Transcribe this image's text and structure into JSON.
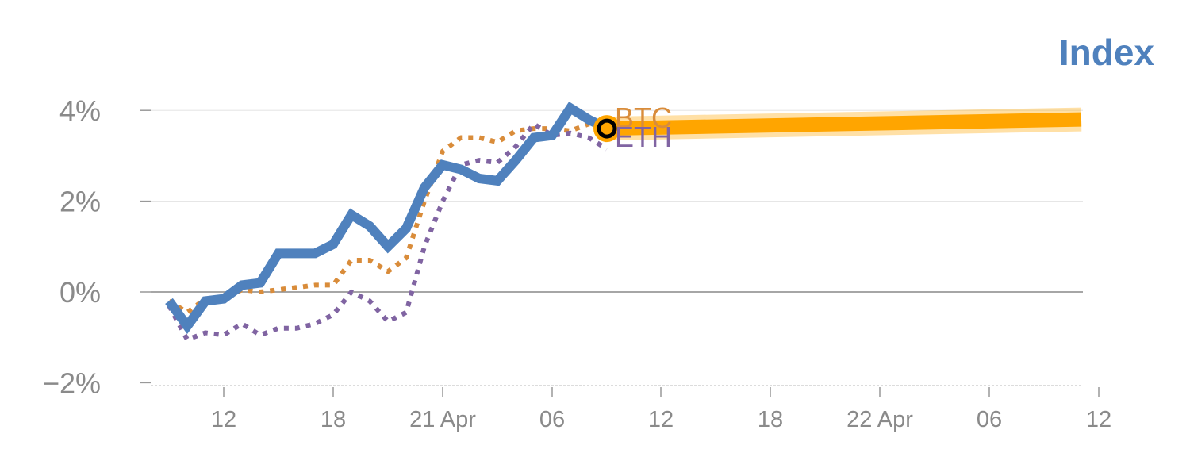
{
  "chart_data": {
    "type": "line",
    "title": "Index",
    "y_ticks": [
      "4%",
      "2%",
      "0%",
      "−2%"
    ],
    "y_tick_values": [
      4,
      2,
      0,
      -2
    ],
    "ylim": [
      -2.1,
      4.1
    ],
    "x_tick_labels": [
      "12",
      "18",
      "21 Apr",
      "06",
      "12",
      "18",
      "22 Apr",
      "06",
      "12"
    ],
    "x_tick_positions": [
      3,
      9,
      15,
      21,
      27,
      33,
      39,
      45,
      51
    ],
    "xlim": [
      -1,
      51
    ],
    "grid": true,
    "series": [
      {
        "name": "Index",
        "color": "#4f81bd",
        "style": "solid",
        "labeled": false,
        "x": [
          0,
          1,
          2,
          3,
          4,
          5,
          6,
          7,
          8,
          9,
          10,
          11,
          12,
          13,
          14,
          15,
          16,
          17,
          18,
          19,
          20,
          21,
          22,
          23,
          24
        ],
        "values": [
          -0.2,
          -0.75,
          -0.2,
          -0.15,
          0.15,
          0.2,
          0.85,
          0.85,
          0.85,
          1.05,
          1.7,
          1.45,
          1.0,
          1.4,
          2.3,
          2.8,
          2.7,
          2.5,
          2.45,
          2.9,
          3.4,
          3.45,
          4.05,
          3.8,
          3.6
        ]
      },
      {
        "name": "BTC",
        "color": "#d98c3a",
        "style": "dotted",
        "labeled": true,
        "x": [
          0,
          1,
          2,
          3,
          4,
          5,
          6,
          7,
          8,
          9,
          10,
          11,
          12,
          13,
          14,
          15,
          16,
          17,
          18,
          19,
          20,
          21,
          22,
          23,
          24
        ],
        "values": [
          -0.2,
          -0.45,
          -0.15,
          -0.15,
          0.05,
          0.0,
          0.05,
          0.1,
          0.15,
          0.15,
          0.7,
          0.7,
          0.45,
          0.75,
          2.0,
          3.1,
          3.4,
          3.4,
          3.3,
          3.55,
          3.6,
          3.6,
          3.55,
          3.7,
          3.65
        ]
      },
      {
        "name": "ETH",
        "color": "#8064a2",
        "style": "dotted",
        "labeled": true,
        "x": [
          0,
          1,
          2,
          3,
          4,
          5,
          6,
          7,
          8,
          9,
          10,
          11,
          12,
          13,
          14,
          15,
          16,
          17,
          18,
          19,
          20,
          21,
          22,
          23,
          24
        ],
        "values": [
          -0.3,
          -1.05,
          -0.9,
          -0.95,
          -0.7,
          -0.95,
          -0.8,
          -0.8,
          -0.7,
          -0.5,
          0.0,
          -0.2,
          -0.65,
          -0.45,
          1.0,
          2.0,
          2.8,
          2.9,
          2.85,
          3.2,
          3.7,
          3.45,
          3.5,
          3.4,
          3.15
        ]
      },
      {
        "name": "forecast",
        "color": "#ffa500",
        "style": "band",
        "labeled": false,
        "x": [
          24,
          50
        ],
        "values": [
          3.6,
          3.8
        ]
      }
    ],
    "marker": {
      "x": 24,
      "y": 3.6,
      "fill": "#ffa500",
      "stroke": "#000000"
    }
  }
}
